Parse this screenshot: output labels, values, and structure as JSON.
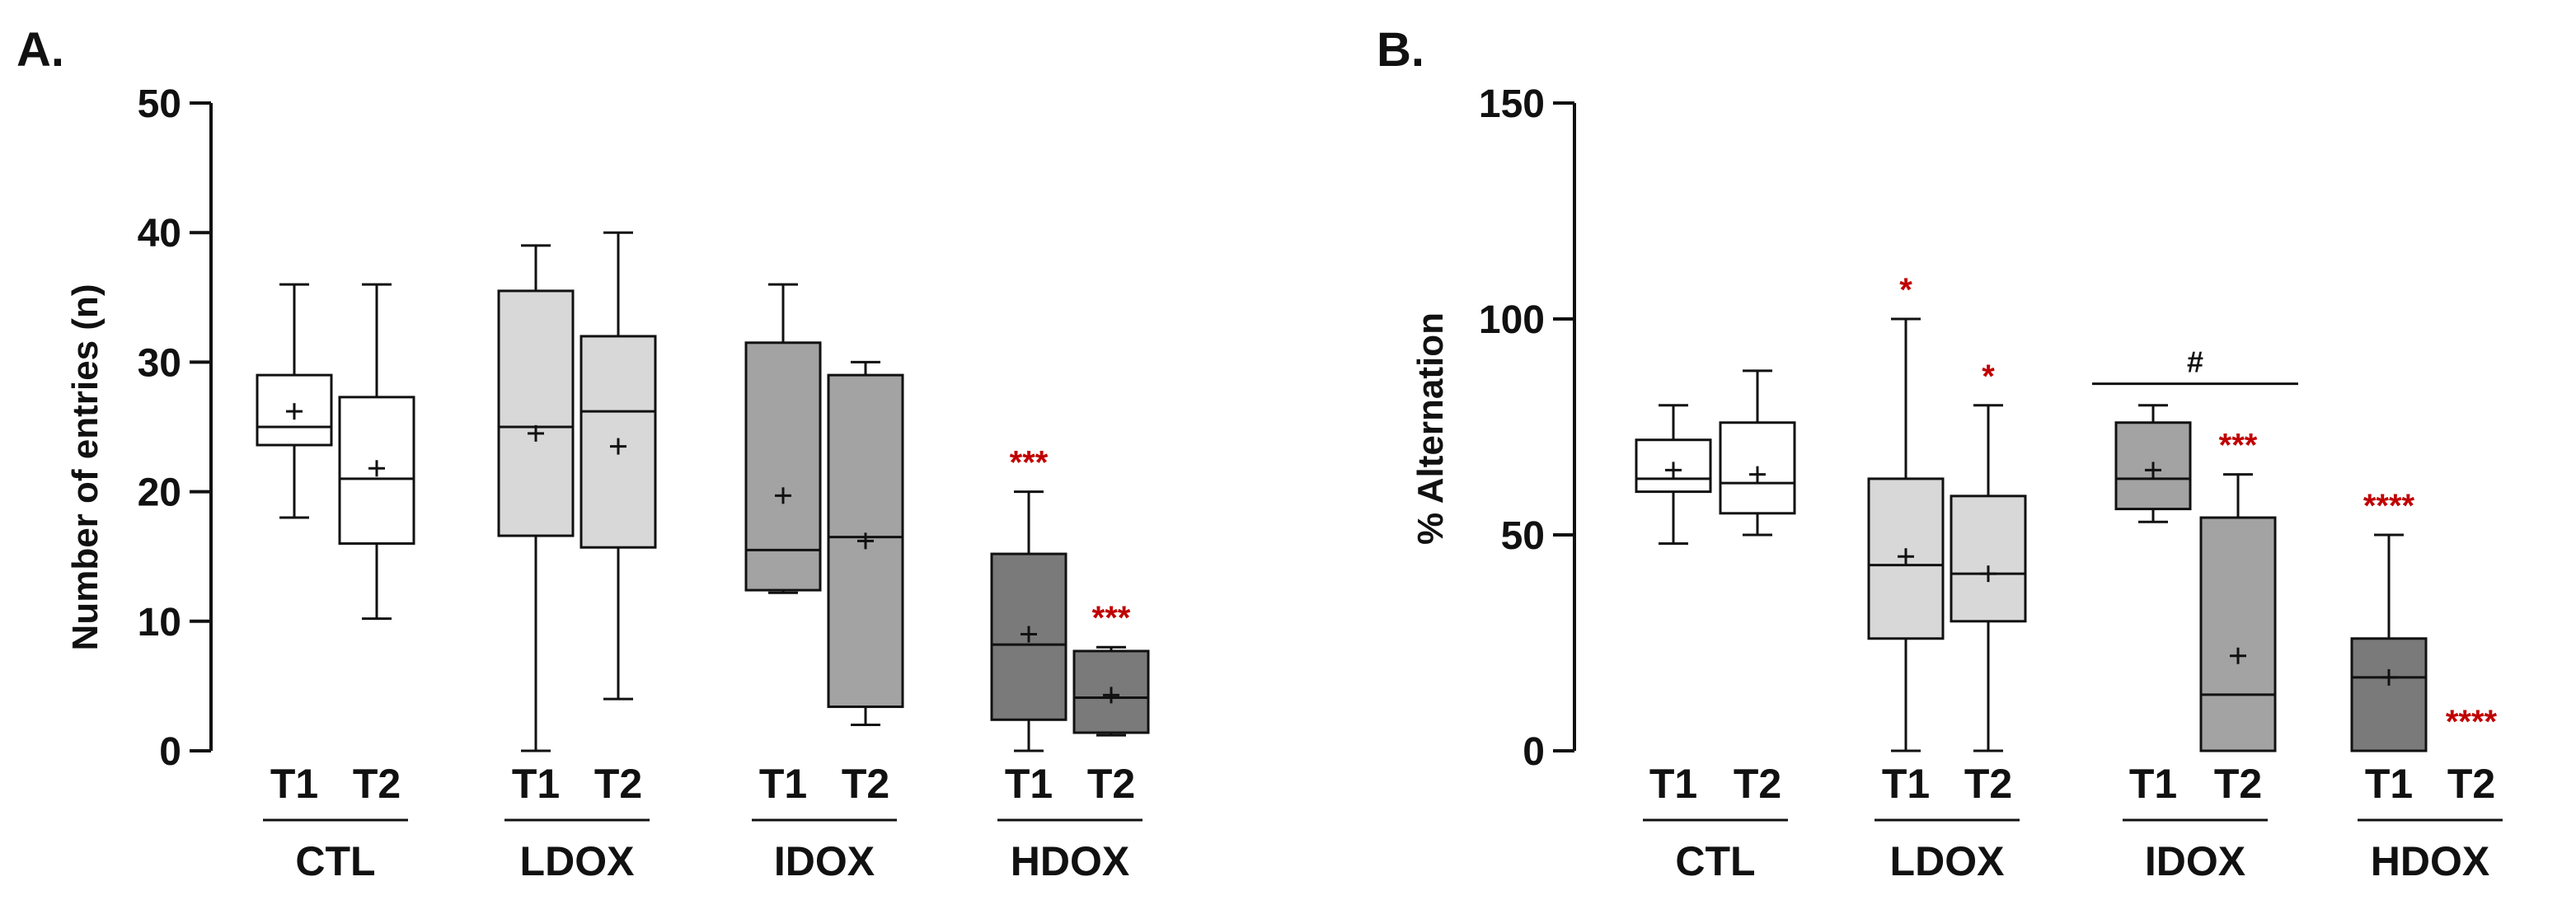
{
  "chart_data": [
    {
      "type": "box",
      "panel_label": "A.",
      "ylabel": "Number of entries (n)",
      "ylim": [
        0,
        50
      ],
      "yticks": [
        "0",
        "10",
        "20",
        "30",
        "40",
        "50"
      ],
      "groups": [
        "CTL",
        "LDOX",
        "IDOX",
        "HDOX"
      ],
      "trials": [
        "T1",
        "T2"
      ],
      "boxes": [
        {
          "group": "CTL",
          "trial": "T1",
          "min": 18,
          "q1": 23.6,
          "median": 25,
          "q3": 29,
          "max": 36,
          "mean": 26.2,
          "fill": "#ffffff",
          "marker": ""
        },
        {
          "group": "CTL",
          "trial": "T2",
          "min": 10.2,
          "q1": 16,
          "median": 21,
          "q3": 27.3,
          "max": 36,
          "mean": 21.8,
          "fill": "#ffffff",
          "marker": ""
        },
        {
          "group": "LDOX",
          "trial": "T1",
          "min": 0,
          "q1": 16.6,
          "median": 25,
          "q3": 35.5,
          "max": 39,
          "mean": 24.5,
          "fill": "#d8d8d8",
          "marker": ""
        },
        {
          "group": "LDOX",
          "trial": "T2",
          "min": 4,
          "q1": 15.7,
          "median": 26.2,
          "q3": 32,
          "max": 40,
          "mean": 23.5,
          "fill": "#d8d8d8",
          "marker": ""
        },
        {
          "group": "IDOX",
          "trial": "T1",
          "min": 12.2,
          "q1": 12.4,
          "median": 15.5,
          "q3": 31.5,
          "max": 36,
          "mean": 19.7,
          "fill": "#a3a3a3",
          "marker": ""
        },
        {
          "group": "IDOX",
          "trial": "T2",
          "min": 2,
          "q1": 3.4,
          "median": 16.5,
          "q3": 29,
          "max": 30,
          "mean": 16.2,
          "fill": "#a3a3a3",
          "marker": ""
        },
        {
          "group": "HDOX",
          "trial": "T1",
          "min": 0,
          "q1": 2.4,
          "median": 8.2,
          "q3": 15.2,
          "max": 20,
          "mean": 9,
          "fill": "#7a7a7a",
          "marker": "***"
        },
        {
          "group": "HDOX",
          "trial": "T2",
          "min": 1.2,
          "q1": 1.4,
          "median": 4.1,
          "q3": 7.7,
          "max": 8,
          "mean": 4.3,
          "fill": "#7a7a7a",
          "marker": "***"
        }
      ]
    },
    {
      "type": "box",
      "panel_label": "B.",
      "ylabel": "% Alternation",
      "ylim": [
        0,
        150
      ],
      "yticks": [
        "0",
        "50",
        "100",
        "150"
      ],
      "groups": [
        "CTL",
        "LDOX",
        "IDOX",
        "HDOX"
      ],
      "trials": [
        "T1",
        "T2"
      ],
      "bracket": {
        "group": "IDOX",
        "label": "#"
      },
      "boxes": [
        {
          "group": "CTL",
          "trial": "T1",
          "min": 48,
          "q1": 60,
          "median": 63,
          "q3": 72,
          "max": 80,
          "mean": 65,
          "fill": "#ffffff",
          "marker": ""
        },
        {
          "group": "CTL",
          "trial": "T2",
          "min": 50,
          "q1": 55,
          "median": 62,
          "q3": 76,
          "max": 88,
          "mean": 64,
          "fill": "#ffffff",
          "marker": ""
        },
        {
          "group": "LDOX",
          "trial": "T1",
          "min": 0,
          "q1": 26,
          "median": 43,
          "q3": 63,
          "max": 100,
          "mean": 45,
          "fill": "#d8d8d8",
          "marker": "*"
        },
        {
          "group": "LDOX",
          "trial": "T2",
          "min": 0,
          "q1": 30,
          "median": 41,
          "q3": 59,
          "max": 80,
          "mean": 41,
          "fill": "#d8d8d8",
          "marker": "*"
        },
        {
          "group": "IDOX",
          "trial": "T1",
          "min": 53,
          "q1": 56,
          "median": 63,
          "q3": 76,
          "max": 80,
          "mean": 65,
          "fill": "#a3a3a3",
          "marker": ""
        },
        {
          "group": "IDOX",
          "trial": "T2",
          "min": 0,
          "q1": 0,
          "median": 13,
          "q3": 54,
          "max": 64,
          "mean": 22,
          "fill": "#a3a3a3",
          "marker": "***"
        },
        {
          "group": "HDOX",
          "trial": "T1",
          "min": 0,
          "q1": 0,
          "median": 17,
          "q3": 26,
          "max": 50,
          "mean": 17,
          "fill": "#7a7a7a",
          "marker": "****"
        },
        {
          "group": "HDOX",
          "trial": "T2",
          "min": 0,
          "q1": 0,
          "median": 0,
          "q3": 0,
          "max": 0,
          "mean": 0,
          "fill": "#7a7a7a",
          "marker": "****"
        }
      ]
    }
  ]
}
